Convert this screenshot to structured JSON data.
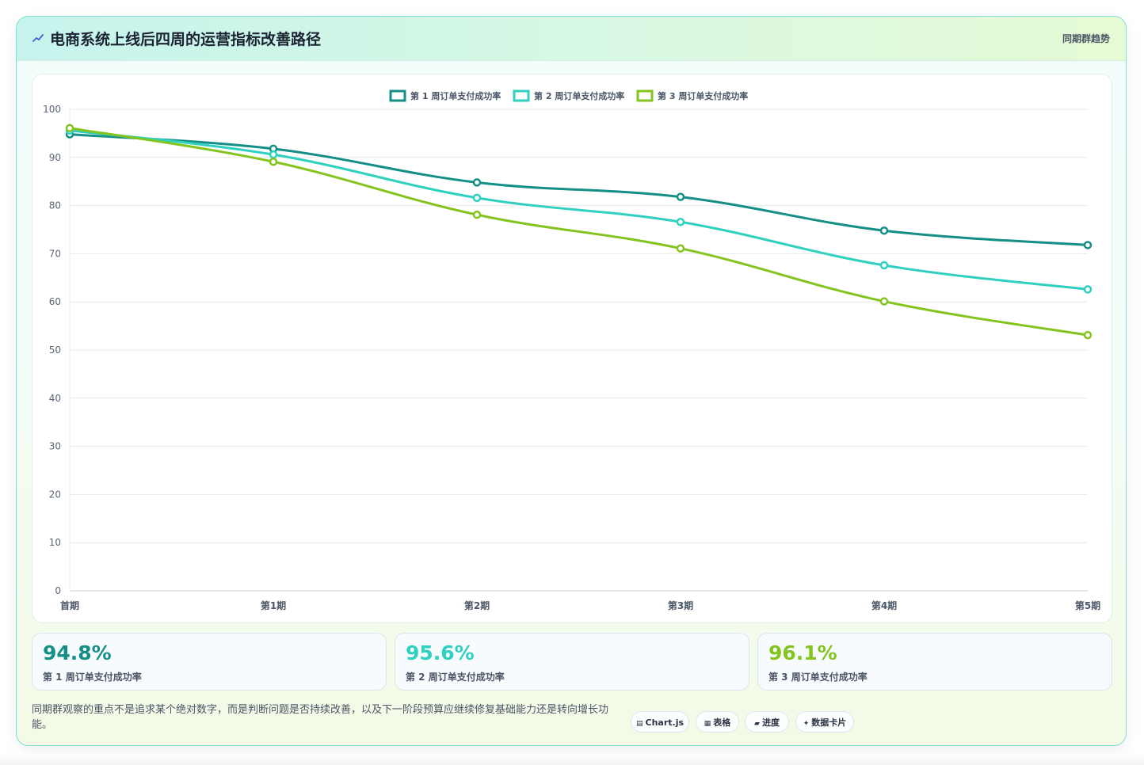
{
  "header": {
    "icon": "trend-icon",
    "title": "电商系统上线后四周的运营指标改善路径",
    "badge": "同期群趋势"
  },
  "chart_data": {
    "type": "line",
    "categories": [
      "首期",
      "第1期",
      "第2期",
      "第3期",
      "第4期",
      "第5期"
    ],
    "ylim": [
      0,
      100
    ],
    "yticks": [
      0,
      10,
      20,
      30,
      40,
      50,
      60,
      70,
      80,
      90,
      100
    ],
    "grid": true,
    "legend_position": "top-center",
    "series": [
      {
        "name": "第 1 周订单支付成功率",
        "color": "#138f85",
        "values": [
          94.8,
          91.8,
          84.8,
          81.8,
          74.8,
          71.8
        ]
      },
      {
        "name": "第 2 周订单支付成功率",
        "color": "#2fd0bf",
        "values": [
          95.6,
          90.6,
          81.6,
          76.6,
          67.6,
          62.6
        ]
      },
      {
        "name": "第 3 周订单支付成功率",
        "color": "#84c41f",
        "values": [
          96.1,
          89.1,
          78.1,
          71.1,
          60.1,
          53.1
        ]
      }
    ]
  },
  "stats": [
    {
      "value": "94.8%",
      "label": "第 1 周订单支付成功率",
      "color": "#138f85"
    },
    {
      "value": "95.6%",
      "label": "第 2 周订单支付成功率",
      "color": "#2fd0bf"
    },
    {
      "value": "96.1%",
      "label": "第 3 周订单支付成功率",
      "color": "#84c41f"
    }
  ],
  "footer": {
    "note": "同期群观察的重点不是追求某个绝对数字，而是判断问题是否持续改善，以及下一阶段预算应继续修复基础能力还是转向增长功能。",
    "chips": [
      {
        "icon": "chart-icon",
        "glyph": "▤",
        "label": "Chart.js"
      },
      {
        "icon": "table-icon",
        "glyph": "▦",
        "label": "表格"
      },
      {
        "icon": "progress-icon",
        "glyph": "▰",
        "label": "进度"
      },
      {
        "icon": "card-icon",
        "glyph": "✦",
        "label": "数据卡片"
      }
    ]
  }
}
